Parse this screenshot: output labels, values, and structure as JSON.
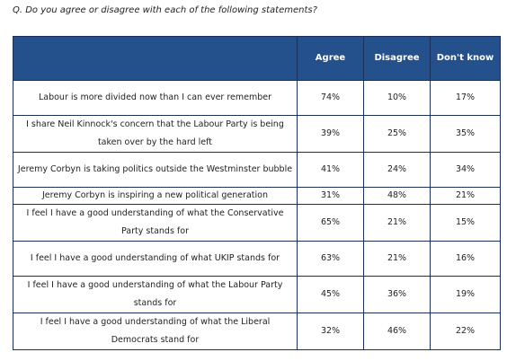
{
  "question": "Q. Do you agree or disagree with each of the following statements?",
  "columns": {
    "statement": "",
    "agree": "Agree",
    "disagree": "Disagree",
    "dont_know": "Don't know"
  },
  "rows": [
    {
      "statement": "Labour is more divided now than I can ever remember",
      "agree": "74%",
      "disagree": "10%",
      "dont_know": "17%"
    },
    {
      "statement": "I share Neil Kinnock's concern that the Labour Party is being taken over by the hard left",
      "agree": "39%",
      "disagree": "25%",
      "dont_know": "35%"
    },
    {
      "statement": "Jeremy Corbyn is taking politics outside the Westminster bubble",
      "agree": "41%",
      "disagree": "24%",
      "dont_know": "34%"
    },
    {
      "statement": "Jeremy Corbyn is inspiring a new political generation",
      "agree": "31%",
      "disagree": "48%",
      "dont_know": "21%"
    },
    {
      "statement": "I feel I have a good understanding of what the Conservative Party stands for",
      "agree": "65%",
      "disagree": "21%",
      "dont_know": "15%"
    },
    {
      "statement": "I feel I have a good understanding of what UKIP stands for",
      "agree": "63%",
      "disagree": "21%",
      "dont_know": "16%"
    },
    {
      "statement": "I feel I have a good understanding of what the Labour Party stands for",
      "agree": "45%",
      "disagree": "36%",
      "dont_know": "19%"
    },
    {
      "statement": "I feel I have a good understanding of what the Liberal Democrats stand for",
      "agree": "32%",
      "disagree": "46%",
      "dont_know": "22%"
    }
  ]
}
